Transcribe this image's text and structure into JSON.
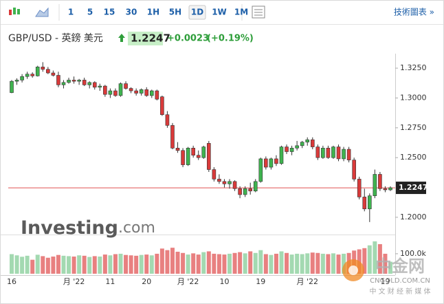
{
  "toolbar": {
    "intervals": [
      "1",
      "5",
      "15",
      "30",
      "1H",
      "5H",
      "1D",
      "1W",
      "1M"
    ],
    "selected": "1D",
    "link": "技術圖表 »"
  },
  "header": {
    "symbol": "GBP/USD - 英鎊 美元",
    "change": "+0.0023",
    "change_pct": "(+0.19%)"
  },
  "logo": [
    "Investing",
    ".com"
  ],
  "watermark": {
    "name": "中金网",
    "site": "CNGOLD.COM.CN",
    "slogan": "中 文 财 经 新 媒 体"
  },
  "chart_data": {
    "type": "candlestick",
    "last_price": 1.2247,
    "categories": [
      "16",
      null,
      null,
      null,
      null,
      null,
      null,
      null,
      null,
      null,
      null,
      null,
      "月 '22",
      null,
      null,
      null,
      null,
      null,
      null,
      "11",
      null,
      null,
      null,
      null,
      null,
      null,
      "20",
      null,
      null,
      null,
      null,
      null,
      null,
      null,
      "月 '22",
      null,
      null,
      null,
      null,
      null,
      null,
      "10",
      null,
      null,
      null,
      null,
      null,
      null,
      "19",
      null,
      null,
      null,
      null,
      null,
      null,
      null,
      null,
      "月 '22",
      null,
      null,
      null,
      null,
      null,
      null,
      null,
      null,
      null,
      null,
      null,
      null,
      null,
      null,
      "19",
      null
    ],
    "open": [
      1.3045,
      1.314,
      1.315,
      1.318,
      1.32,
      1.3185,
      1.326,
      1.324,
      1.321,
      1.319,
      1.311,
      1.313,
      1.315,
      1.314,
      1.315,
      1.311,
      1.313,
      1.309,
      1.31,
      1.303,
      1.306,
      1.302,
      1.312,
      1.308,
      1.306,
      1.304,
      1.307,
      1.302,
      1.306,
      1.301,
      1.286,
      1.277,
      1.258,
      1.256,
      1.244,
      1.258,
      1.252,
      1.25,
      1.262,
      1.24,
      1.232,
      1.23,
      1.228,
      1.23,
      1.224,
      1.219,
      1.224,
      1.222,
      1.23,
      1.249,
      1.242,
      1.249,
      1.245,
      1.259,
      1.255,
      1.258,
      1.26,
      1.263,
      1.265,
      1.259,
      1.25,
      1.258,
      1.25,
      1.259,
      1.249,
      1.257,
      1.248,
      1.232,
      1.217,
      1.207,
      1.218,
      1.236,
      1.224,
      1.223
    ],
    "high": [
      1.315,
      1.3165,
      1.32,
      1.322,
      1.3215,
      1.327,
      1.33,
      1.326,
      1.323,
      1.322,
      1.315,
      1.317,
      1.318,
      1.316,
      1.317,
      1.314,
      1.314,
      1.312,
      1.311,
      1.308,
      1.308,
      1.313,
      1.314,
      1.309,
      1.308,
      1.308,
      1.309,
      1.307,
      1.307,
      1.302,
      1.289,
      1.279,
      1.263,
      1.258,
      1.259,
      1.26,
      1.256,
      1.26,
      1.264,
      1.242,
      1.236,
      1.232,
      1.232,
      1.231,
      1.226,
      1.226,
      1.229,
      1.232,
      1.25,
      1.251,
      1.25,
      1.252,
      1.26,
      1.261,
      1.26,
      1.264,
      1.264,
      1.267,
      1.267,
      1.261,
      1.26,
      1.26,
      1.26,
      1.261,
      1.259,
      1.259,
      1.25,
      1.234,
      1.224,
      1.22,
      1.24,
      1.238,
      1.226,
      1.226
    ],
    "low": [
      1.304,
      1.311,
      1.313,
      1.316,
      1.317,
      1.318,
      1.322,
      1.32,
      1.318,
      1.309,
      1.308,
      1.312,
      1.312,
      1.311,
      1.31,
      1.308,
      1.307,
      1.306,
      1.301,
      1.3,
      1.301,
      1.301,
      1.307,
      1.304,
      1.302,
      1.302,
      1.301,
      1.3,
      1.298,
      1.285,
      1.275,
      1.257,
      1.254,
      1.242,
      1.243,
      1.25,
      1.248,
      1.249,
      1.238,
      1.23,
      1.228,
      1.225,
      1.224,
      1.222,
      1.216,
      1.217,
      1.219,
      1.221,
      1.229,
      1.24,
      1.24,
      1.243,
      1.244,
      1.253,
      1.252,
      1.256,
      1.258,
      1.26,
      1.257,
      1.248,
      1.249,
      1.249,
      1.249,
      1.247,
      1.247,
      1.246,
      1.23,
      1.215,
      1.205,
      1.196,
      1.216,
      1.222,
      1.221,
      1.222
    ],
    "close": [
      1.314,
      1.315,
      1.318,
      1.32,
      1.3185,
      1.326,
      1.324,
      1.321,
      1.319,
      1.311,
      1.313,
      1.315,
      1.314,
      1.315,
      1.311,
      1.313,
      1.309,
      1.31,
      1.303,
      1.306,
      1.302,
      1.312,
      1.308,
      1.306,
      1.304,
      1.307,
      1.302,
      1.306,
      1.299,
      1.286,
      1.277,
      1.258,
      1.256,
      1.244,
      1.258,
      1.252,
      1.25,
      1.259,
      1.24,
      1.232,
      1.23,
      1.228,
      1.23,
      1.224,
      1.219,
      1.224,
      1.222,
      1.23,
      1.249,
      1.242,
      1.249,
      1.245,
      1.259,
      1.255,
      1.258,
      1.26,
      1.263,
      1.265,
      1.259,
      1.25,
      1.258,
      1.25,
      1.259,
      1.249,
      1.257,
      1.248,
      1.232,
      1.217,
      1.207,
      1.218,
      1.236,
      1.224,
      1.223,
      1.2247
    ],
    "volume": [
      98000,
      92000,
      85000,
      90000,
      70000,
      95000,
      88000,
      80000,
      86000,
      94000,
      90000,
      88000,
      86000,
      92000,
      90000,
      84000,
      88000,
      86000,
      96000,
      92000,
      98000,
      100000,
      94000,
      92000,
      90000,
      94000,
      96000,
      92000,
      100000,
      126000,
      118000,
      130000,
      110000,
      104000,
      96000,
      102000,
      96000,
      108000,
      112000,
      100000,
      98000,
      96000,
      100000,
      104000,
      108000,
      102000,
      112000,
      104000,
      118000,
      98000,
      94000,
      100000,
      112000,
      104000,
      96000,
      100000,
      98000,
      102000,
      106000,
      104000,
      100000,
      98000,
      102000,
      96000,
      100000,
      104000,
      116000,
      122000,
      128000,
      142000,
      162000,
      148000,
      100000,
      60000
    ],
    "up_color": "#3fb34f",
    "down_color": "#d93a3a",
    "up_volume_color": "#a3d9b1",
    "down_volume_color": "#e88080",
    "last_line_color": "#e05050",
    "ylim": [
      1.189,
      1.336
    ],
    "yticks": [
      {
        "value": 1.325,
        "label": "1.3250"
      },
      {
        "value": 1.3,
        "label": "1.3000"
      },
      {
        "value": 1.275,
        "label": "1.2750"
      },
      {
        "value": 1.25,
        "label": "1.2500"
      },
      {
        "value": 1.2,
        "label": "1.2000"
      }
    ],
    "volume_ylim": [
      0,
      172000
    ],
    "volume_yticks": [
      {
        "value": 100000,
        "label": "100.0k"
      }
    ]
  }
}
